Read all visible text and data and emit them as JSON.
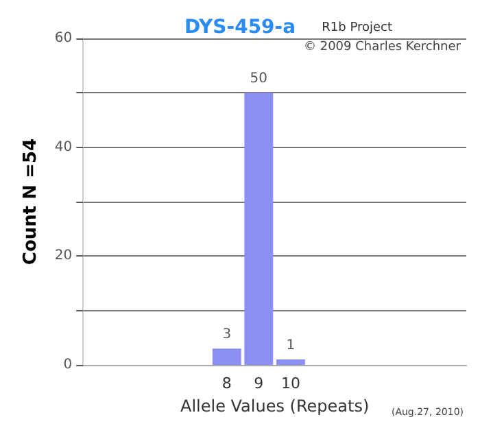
{
  "chart_data": {
    "type": "bar",
    "title": "DYS-459-a",
    "xlabel": "Allele Values (Repeats)",
    "ylabel": "Count N =54",
    "categories": [
      null,
      null,
      null,
      null,
      "8",
      "9",
      "10",
      null,
      null,
      null,
      null,
      null
    ],
    "values": [
      null,
      null,
      null,
      null,
      3,
      50,
      1,
      null,
      null,
      null,
      null,
      null
    ],
    "color": "#8c8ef2",
    "data_labels": true,
    "grid": "y",
    "ylim": [
      0,
      60
    ],
    "yticks": [
      0,
      {
        "value": 10,
        "label": null
      },
      20,
      {
        "value": 30,
        "label": null
      },
      40,
      {
        "value": 50,
        "label": null
      },
      60
    ],
    "annotations": [
      "R1b Project",
      "© 2009 Charles Kerchner",
      "(Aug.27, 2010)"
    ]
  }
}
